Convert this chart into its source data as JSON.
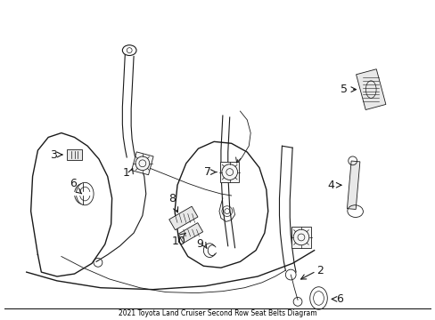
{
  "title": "2021 Toyota Land Cruiser Second Row Seat Belts Diagram",
  "bg_color": "#ffffff",
  "line_color": "#1a1a1a",
  "label_color": "#000000",
  "figsize": [
    4.89,
    3.6
  ],
  "dpi": 100,
  "border_color": "#000000"
}
